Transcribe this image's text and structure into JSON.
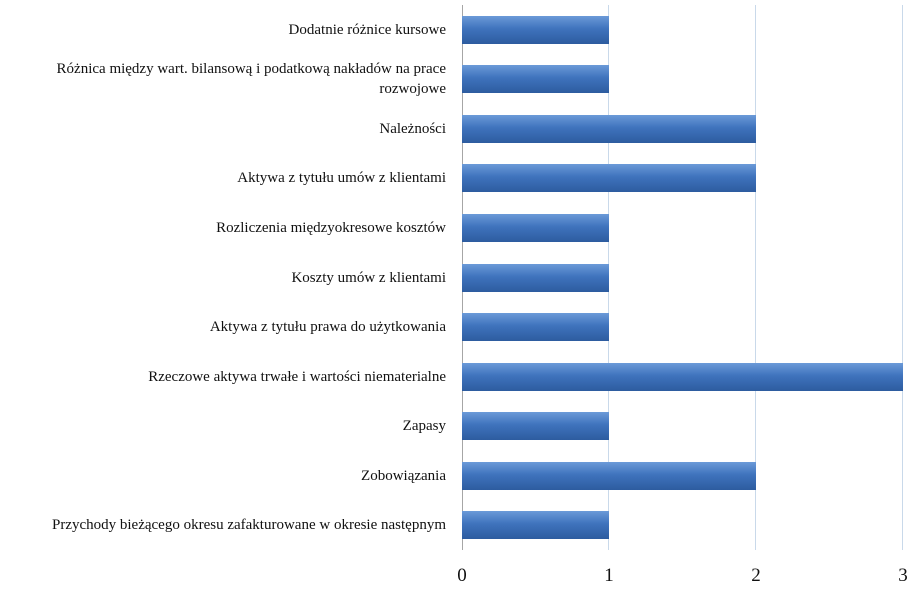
{
  "chart_data": {
    "type": "bar",
    "orientation": "horizontal",
    "categories": [
      "Dodatnie różnice kursowe",
      "Różnica między wart. bilansową i podatkową nakładów na prace rozwojowe",
      "Należności",
      "Aktywa z tytułu umów z klientami",
      "Rozliczenia międzyokresowe kosztów",
      "Koszty umów z klientami",
      "Aktywa z tytułu prawa do użytkowania",
      "Rzeczowe aktywa trwałe i wartości niematerialne",
      "Zapasy",
      "Zobowiązania",
      "Przychody bieżącego okresu zafakturowane w okresie następnym"
    ],
    "values": [
      1,
      1,
      2,
      2,
      1,
      1,
      1,
      3,
      1,
      2,
      1
    ],
    "color": "#3f73bd",
    "xlim": [
      0,
      3
    ],
    "xticks": [
      0,
      1,
      2,
      3
    ],
    "grid": true
  }
}
